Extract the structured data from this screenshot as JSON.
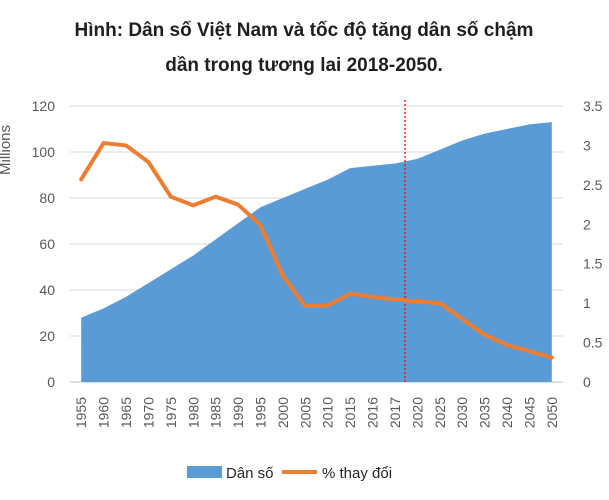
{
  "chart_data": {
    "type": "area",
    "title_line1": "Hình: Dân số Việt Nam và tốc độ tăng dân số chậm",
    "title_line2": "dần trong tương lai 2018-2050.",
    "ylabel_left": "Millions",
    "categories": [
      "1955",
      "1960",
      "1965",
      "1970",
      "1975",
      "1980",
      "1985",
      "1990",
      "1995",
      "2000",
      "2005",
      "2010",
      "2015",
      "2016",
      "2017",
      "2020",
      "2025",
      "2030",
      "2035",
      "2040",
      "2045",
      "2050"
    ],
    "ylim_left": [
      0,
      120
    ],
    "yticks_left": [
      "0",
      "20",
      "40",
      "60",
      "80",
      "100",
      "120"
    ],
    "ylim_right": [
      0,
      3.5
    ],
    "yticks_right": [
      "0",
      "0.5",
      "1",
      "1.5",
      "2",
      "2.5",
      "3",
      "3.5"
    ],
    "series": [
      {
        "name": "Dân số",
        "type": "area",
        "axis": "left",
        "color": "#5b9bd5",
        "values": [
          28,
          32,
          37,
          43,
          49,
          55,
          62,
          69,
          76,
          80,
          84,
          88,
          93,
          94,
          95,
          97,
          101,
          105,
          108,
          110,
          112,
          113
        ]
      },
      {
        "name": "% thay đổi",
        "type": "line",
        "axis": "right",
        "color": "#ed7d31",
        "values": [
          2.57,
          3.03,
          3.0,
          2.79,
          2.35,
          2.24,
          2.35,
          2.25,
          1.99,
          1.35,
          0.96,
          0.97,
          1.12,
          1.08,
          1.05,
          1.02,
          1.0,
          0.8,
          0.6,
          0.47,
          0.39,
          0.31
        ]
      }
    ],
    "marker_category_index": 14,
    "marker_color": "#ff0000",
    "grid": true,
    "legend_position": "bottom"
  }
}
